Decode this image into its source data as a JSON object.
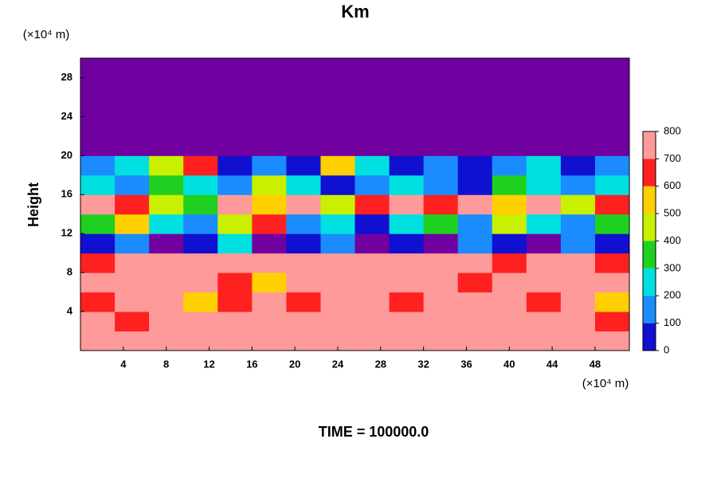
{
  "chart_data": {
    "type": "heatmap",
    "title": "Km",
    "y_unit": "(×10⁴ m)",
    "x_unit": "(×10⁴ m)",
    "ylabel": "Height",
    "footer": "TIME = 100000.0",
    "xlim": [
      0,
      51.2
    ],
    "ylim": [
      0,
      30
    ],
    "xticks": [
      4,
      8,
      12,
      16,
      20,
      24,
      28,
      32,
      36,
      40,
      44,
      48
    ],
    "yticks": [
      4,
      8,
      12,
      16,
      20,
      24,
      28
    ],
    "x_edges": [
      0,
      3.2,
      6.4,
      9.6,
      12.8,
      16,
      19.2,
      22.4,
      25.6,
      28.8,
      32,
      35.2,
      38.4,
      41.6,
      44.8,
      48,
      51.2
    ],
    "y_edges": [
      0,
      2,
      4,
      6,
      8,
      10,
      12,
      14,
      16,
      18,
      20,
      22,
      24,
      26,
      28,
      30
    ],
    "z": [
      [
        800,
        800,
        800,
        800,
        800,
        800,
        800,
        800,
        800,
        800,
        800,
        800,
        800,
        800,
        800,
        800
      ],
      [
        800,
        700,
        800,
        800,
        800,
        800,
        800,
        800,
        800,
        800,
        800,
        800,
        800,
        800,
        800,
        700
      ],
      [
        700,
        800,
        800,
        600,
        700,
        800,
        700,
        800,
        800,
        700,
        800,
        800,
        800,
        700,
        800,
        600
      ],
      [
        800,
        800,
        800,
        800,
        700,
        600,
        800,
        800,
        800,
        800,
        800,
        700,
        800,
        800,
        800,
        800
      ],
      [
        700,
        800,
        800,
        800,
        800,
        800,
        800,
        800,
        800,
        800,
        800,
        800,
        700,
        800,
        800,
        700
      ],
      [
        100,
        200,
        0,
        100,
        300,
        0,
        100,
        200,
        0,
        100,
        0,
        200,
        100,
        0,
        200,
        100
      ],
      [
        400,
        600,
        300,
        200,
        500,
        700,
        200,
        300,
        100,
        300,
        400,
        200,
        500,
        300,
        200,
        400
      ],
      [
        800,
        700,
        500,
        400,
        800,
        600,
        800,
        500,
        700,
        800,
        700,
        800,
        600,
        800,
        500,
        700
      ],
      [
        300,
        200,
        400,
        300,
        200,
        500,
        300,
        100,
        200,
        300,
        200,
        100,
        400,
        300,
        200,
        300
      ],
      [
        200,
        300,
        500,
        700,
        100,
        200,
        100,
        600,
        300,
        100,
        200,
        100,
        200,
        300,
        100,
        200
      ],
      [
        0,
        0,
        0,
        0,
        0,
        0,
        0,
        0,
        0,
        0,
        0,
        0,
        0,
        0,
        0,
        0
      ],
      [
        0,
        0,
        0,
        0,
        0,
        0,
        0,
        0,
        0,
        0,
        0,
        0,
        0,
        0,
        0,
        0
      ],
      [
        0,
        0,
        0,
        0,
        0,
        0,
        0,
        0,
        0,
        0,
        0,
        0,
        0,
        0,
        0,
        0
      ],
      [
        0,
        0,
        0,
        0,
        0,
        0,
        0,
        0,
        0,
        0,
        0,
        0,
        0,
        0,
        0,
        0
      ],
      [
        0,
        0,
        0,
        0,
        0,
        0,
        0,
        0,
        0,
        0,
        0,
        0,
        0,
        0,
        0,
        0
      ]
    ],
    "colorbar_ticks": [
      0,
      100,
      200,
      300,
      400,
      500,
      600,
      700,
      800
    ],
    "colors": [
      "#7000a0",
      "#1010d0",
      "#1a8cff",
      "#00e0e0",
      "#20d020",
      "#c8f000",
      "#ffd000",
      "#ff2020",
      "#ff9a9a"
    ]
  }
}
